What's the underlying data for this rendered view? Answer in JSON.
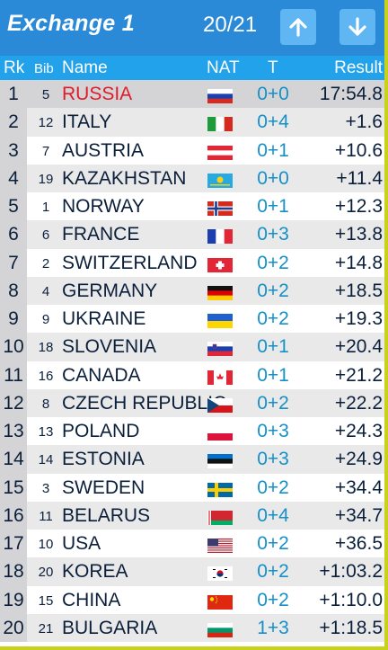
{
  "header": {
    "title": "Exchange 1",
    "page_indicator": "20/21",
    "up_icon": "arrow-up-icon",
    "down_icon": "arrow-down-icon"
  },
  "columns": {
    "rank": "Rk",
    "bib": "Bib",
    "name": "Name",
    "nat": "NAT",
    "t": "T",
    "result": "Result"
  },
  "rows": [
    {
      "rank": "1",
      "bib": "5",
      "name": "RUSSIA",
      "flag": "russia-flag",
      "t": "0+0",
      "result": "17:54.8"
    },
    {
      "rank": "2",
      "bib": "12",
      "name": "ITALY",
      "flag": "italy-flag",
      "t": "0+4",
      "result": "+1.6"
    },
    {
      "rank": "3",
      "bib": "7",
      "name": "AUSTRIA",
      "flag": "austria-flag",
      "t": "0+1",
      "result": "+10.6"
    },
    {
      "rank": "4",
      "bib": "19",
      "name": "KAZAKHSTAN",
      "flag": "kazakhstan-flag",
      "t": "0+0",
      "result": "+11.4"
    },
    {
      "rank": "5",
      "bib": "1",
      "name": "NORWAY",
      "flag": "norway-flag",
      "t": "0+1",
      "result": "+12.3"
    },
    {
      "rank": "6",
      "bib": "6",
      "name": "FRANCE",
      "flag": "france-flag",
      "t": "0+3",
      "result": "+13.8"
    },
    {
      "rank": "7",
      "bib": "2",
      "name": "SWITZERLAND",
      "flag": "switzerland-flag",
      "t": "0+2",
      "result": "+14.8"
    },
    {
      "rank": "8",
      "bib": "4",
      "name": "GERMANY",
      "flag": "germany-flag",
      "t": "0+2",
      "result": "+18.5"
    },
    {
      "rank": "9",
      "bib": "9",
      "name": "UKRAINE",
      "flag": "ukraine-flag",
      "t": "0+2",
      "result": "+19.3"
    },
    {
      "rank": "10",
      "bib": "18",
      "name": "SLOVENIA",
      "flag": "slovenia-flag",
      "t": "0+1",
      "result": "+20.4"
    },
    {
      "rank": "11",
      "bib": "16",
      "name": "CANADA",
      "flag": "canada-flag",
      "t": "0+1",
      "result": "+21.2"
    },
    {
      "rank": "12",
      "bib": "8",
      "name": "CZECH REPUBLIC",
      "flag": "czech-flag",
      "t": "0+2",
      "result": "+22.2"
    },
    {
      "rank": "13",
      "bib": "13",
      "name": "POLAND",
      "flag": "poland-flag",
      "t": "0+3",
      "result": "+24.3"
    },
    {
      "rank": "14",
      "bib": "14",
      "name": "ESTONIA",
      "flag": "estonia-flag",
      "t": "0+3",
      "result": "+24.9"
    },
    {
      "rank": "15",
      "bib": "3",
      "name": "SWEDEN",
      "flag": "sweden-flag",
      "t": "0+2",
      "result": "+34.4"
    },
    {
      "rank": "16",
      "bib": "11",
      "name": "BELARUS",
      "flag": "belarus-flag",
      "t": "0+4",
      "result": "+34.7"
    },
    {
      "rank": "17",
      "bib": "10",
      "name": "USA",
      "flag": "usa-flag",
      "t": "0+2",
      "result": "+36.5"
    },
    {
      "rank": "18",
      "bib": "20",
      "name": "KOREA",
      "flag": "korea-flag",
      "t": "0+2",
      "result": "+1:03.2"
    },
    {
      "rank": "19",
      "bib": "15",
      "name": "CHINA",
      "flag": "china-flag",
      "t": "0+2",
      "result": "+1:10.0"
    },
    {
      "rank": "20",
      "bib": "21",
      "name": "BULGARIA",
      "flag": "bulgaria-flag",
      "t": "1+3",
      "result": "+1:18.5"
    }
  ],
  "colors": {
    "topbar": "#2a8ad8",
    "header_row": "#22a2eb",
    "button": "#5fb6f2",
    "leader_name": "#e01b2a",
    "penalty_text": "#1590c8",
    "border_accent": "#c8d21a"
  }
}
